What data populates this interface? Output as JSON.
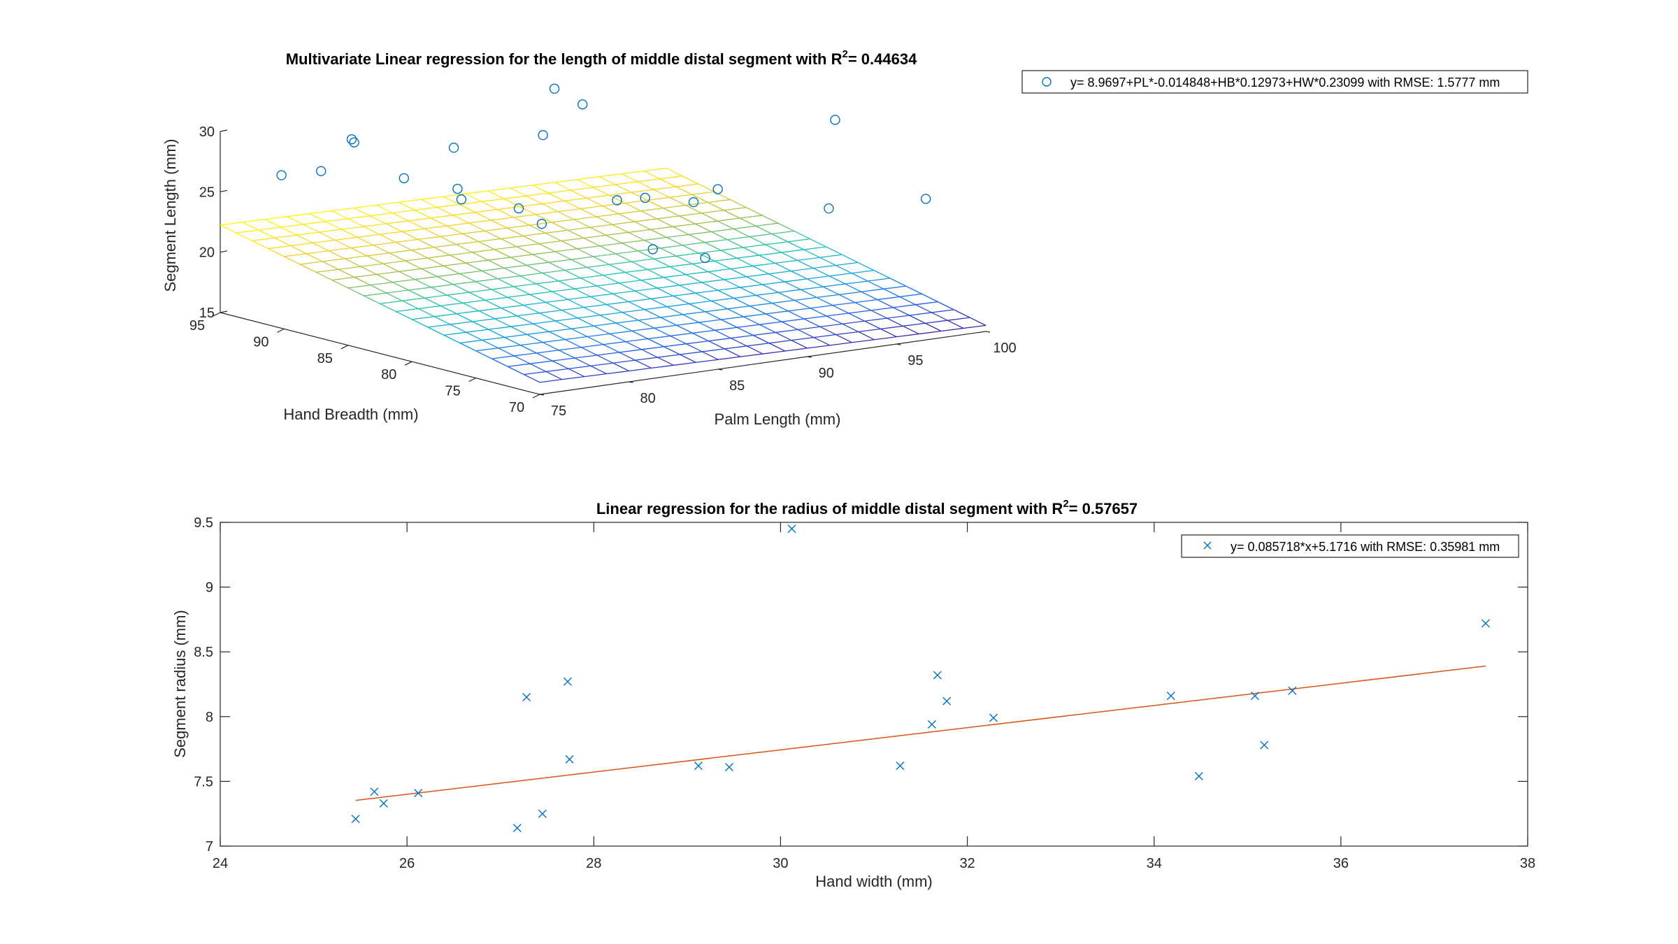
{
  "chart_data": [
    {
      "type": "scatter",
      "subtype": "3d-scatter-with-regression-plane",
      "title_prefix": "Multivariate Linear regression for the length of middle distal segment with R",
      "title_sup": "2",
      "title_suffix": "= 0.44634",
      "xlabel": "Palm Length (mm)",
      "ylabel": "Hand Breadth (mm)",
      "zlabel": "Segment Length (mm)",
      "xlim": [
        75,
        100
      ],
      "ylim": [
        70,
        95
      ],
      "zlim": [
        15,
        30
      ],
      "x_ticks": [
        "75",
        "80",
        "85",
        "90",
        "95",
        "100"
      ],
      "y_ticks": [
        "70",
        "75",
        "80",
        "85",
        "90",
        "95"
      ],
      "z_ticks": [
        "15",
        "20",
        "25",
        "30"
      ],
      "legend": {
        "location": "top-right",
        "entries": [
          "y= 8.9697+PL*-0.014848+HB*0.12973+HW*0.23099 with RMSE: 1.5777 mm"
        ]
      },
      "series": [
        {
          "name": "y= 8.9697+PL*-0.014848+HB*0.12973+HW*0.23099 with RMSE: 1.5777 mm",
          "marker": "circle",
          "color": "#0072BD",
          "points": [
            {
              "x": 77.0,
              "y": 93.0,
              "z": 26.5
            },
            {
              "x": 78.5,
              "y": 92.0,
              "z": 26.8
            },
            {
              "x": 79.5,
              "y": 91.0,
              "z": 29.5
            },
            {
              "x": 80.0,
              "y": 91.5,
              "z": 29.0
            },
            {
              "x": 81.0,
              "y": 89.0,
              "z": 26.5
            },
            {
              "x": 82.0,
              "y": 86.5,
              "z": 29.5
            },
            {
              "x": 83.5,
              "y": 88.0,
              "z": 24.5
            },
            {
              "x": 84.0,
              "y": 89.0,
              "z": 25.0
            },
            {
              "x": 86.0,
              "y": 87.0,
              "z": 23.5
            },
            {
              "x": 85.5,
              "y": 84.5,
              "z": 23.0
            },
            {
              "x": 87.0,
              "y": 86.5,
              "z": 29.5
            },
            {
              "x": 88.0,
              "y": 87.0,
              "z": 33.0
            },
            {
              "x": 88.5,
              "y": 85.5,
              "z": 32.0
            },
            {
              "x": 89.0,
              "y": 83.5,
              "z": 24.5
            },
            {
              "x": 88.5,
              "y": 80.0,
              "z": 21.5
            },
            {
              "x": 89.5,
              "y": 82.0,
              "z": 25.0
            },
            {
              "x": 90.0,
              "y": 78.0,
              "z": 21.0
            },
            {
              "x": 91.5,
              "y": 81.0,
              "z": 24.5
            },
            {
              "x": 92.5,
              "y": 80.5,
              "z": 25.5
            },
            {
              "x": 95.5,
              "y": 76.0,
              "z": 24.5
            },
            {
              "x": 98.0,
              "y": 79.0,
              "z": 30.5
            },
            {
              "x": 99.5,
              "y": 74.0,
              "z": 25.0
            }
          ]
        }
      ],
      "surface": {
        "colormap": "parula",
        "grid": 20
      }
    },
    {
      "type": "scatter",
      "title_prefix": "Linear regression for the radius of middle distal segment with R",
      "title_sup": "2",
      "title_suffix": "= 0.57657",
      "xlabel": "Hand width (mm)",
      "ylabel": "Segment radius (mm)",
      "xlim": [
        24,
        38
      ],
      "ylim": [
        7,
        9.5
      ],
      "x_ticks": [
        24,
        26,
        28,
        30,
        32,
        34,
        36,
        38
      ],
      "y_ticks": [
        7,
        7.5,
        8,
        8.5,
        9,
        9.5
      ],
      "x_tick_labels": [
        "24",
        "26",
        "28",
        "30",
        "32",
        "34",
        "36",
        "38"
      ],
      "y_tick_labels": [
        "7",
        "7.5",
        "8",
        "8.5",
        "9",
        "9.5"
      ],
      "legend": {
        "location": "top-right",
        "entries": [
          "y= 0.085718*x+5.1716 with RMSE: 0.35981 mm"
        ]
      },
      "series": [
        {
          "name": "y= 0.085718*x+5.1716 with RMSE: 0.35981 mm",
          "marker": "x",
          "color": "#0072BD",
          "points": [
            {
              "x": 25.45,
              "y": 7.21
            },
            {
              "x": 25.65,
              "y": 7.42
            },
            {
              "x": 25.75,
              "y": 7.33
            },
            {
              "x": 26.12,
              "y": 7.41
            },
            {
              "x": 27.18,
              "y": 7.14
            },
            {
              "x": 27.28,
              "y": 8.15
            },
            {
              "x": 27.45,
              "y": 7.25
            },
            {
              "x": 27.72,
              "y": 8.27
            },
            {
              "x": 27.74,
              "y": 7.67
            },
            {
              "x": 29.12,
              "y": 7.62
            },
            {
              "x": 29.45,
              "y": 7.61
            },
            {
              "x": 30.12,
              "y": 9.45
            },
            {
              "x": 31.28,
              "y": 7.62
            },
            {
              "x": 31.62,
              "y": 7.94
            },
            {
              "x": 31.68,
              "y": 8.32
            },
            {
              "x": 31.78,
              "y": 8.12
            },
            {
              "x": 32.28,
              "y": 7.99
            },
            {
              "x": 34.18,
              "y": 8.16
            },
            {
              "x": 34.48,
              "y": 7.54
            },
            {
              "x": 35.08,
              "y": 8.16
            },
            {
              "x": 35.18,
              "y": 7.78
            },
            {
              "x": 35.48,
              "y": 8.2
            },
            {
              "x": 37.55,
              "y": 8.72
            }
          ]
        }
      ],
      "fit_line": {
        "slope": 0.085718,
        "intercept": 5.1716,
        "x_range": [
          25.45,
          37.55
        ],
        "color": "#D95319"
      }
    }
  ]
}
